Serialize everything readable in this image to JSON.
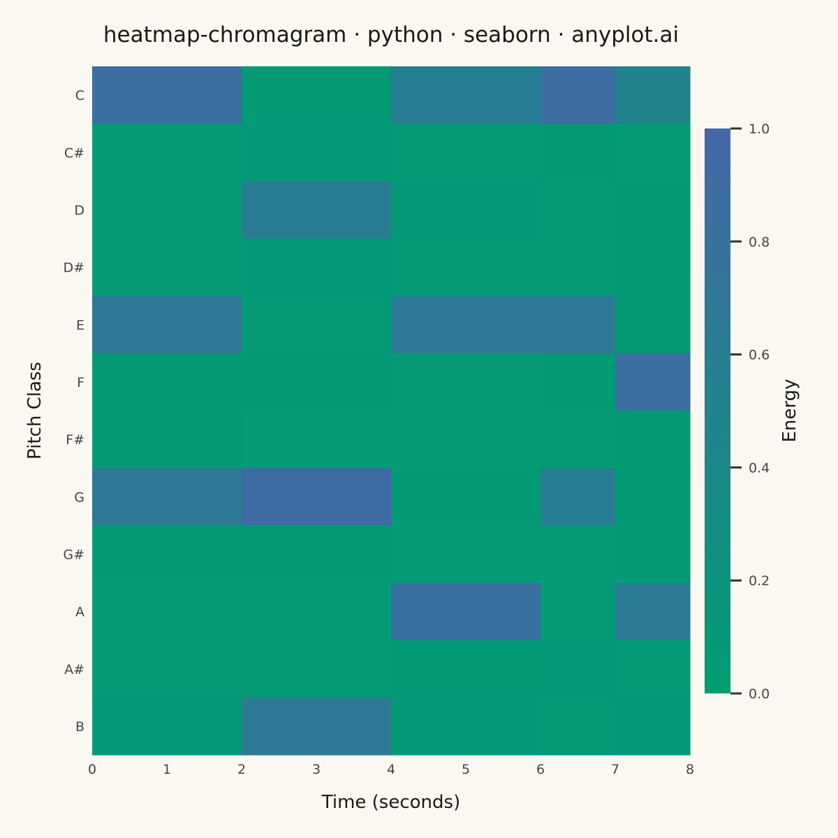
{
  "colors": {
    "background": "#FAF8F1",
    "low": "#009E73",
    "high": "#4467A8",
    "text": "#1a1a1a",
    "tick_text": "#444444"
  },
  "chart_data": {
    "type": "heatmap",
    "title": "heatmap-chromagram · python · seaborn · anyplot.ai",
    "xlabel": "Time (seconds)",
    "ylabel": "Pitch Class",
    "xlim": [
      0,
      8
    ],
    "x_ticks": [
      "0",
      "1",
      "2",
      "3",
      "4",
      "5",
      "6",
      "7",
      "8"
    ],
    "y_categories": [
      "C",
      "C#",
      "D",
      "D#",
      "E",
      "F",
      "F#",
      "G",
      "G#",
      "A",
      "A#",
      "B"
    ],
    "time_segments": [
      [
        0,
        2
      ],
      [
        2,
        4
      ],
      [
        4,
        6
      ],
      [
        6,
        7
      ],
      [
        7,
        8
      ]
    ],
    "values": [
      [
        0.88,
        0.05,
        0.58,
        0.9,
        0.5
      ],
      [
        0.06,
        0.07,
        0.06,
        0.05,
        0.04
      ],
      [
        0.06,
        0.6,
        0.07,
        0.06,
        0.05
      ],
      [
        0.06,
        0.07,
        0.06,
        0.06,
        0.05
      ],
      [
        0.68,
        0.06,
        0.65,
        0.66,
        0.05
      ],
      [
        0.05,
        0.05,
        0.06,
        0.05,
        0.88
      ],
      [
        0.05,
        0.06,
        0.06,
        0.06,
        0.05
      ],
      [
        0.66,
        0.93,
        0.05,
        0.58,
        0.05
      ],
      [
        0.05,
        0.05,
        0.06,
        0.06,
        0.05
      ],
      [
        0.06,
        0.06,
        0.86,
        0.06,
        0.64
      ],
      [
        0.06,
        0.06,
        0.05,
        0.07,
        0.06
      ],
      [
        0.07,
        0.66,
        0.07,
        0.06,
        0.07
      ]
    ],
    "colorbar": {
      "label": "Energy",
      "range": [
        0,
        1
      ],
      "ticks": [
        "0.0",
        "0.2",
        "0.4",
        "0.6",
        "0.8",
        "1.0"
      ]
    },
    "grid": false
  }
}
